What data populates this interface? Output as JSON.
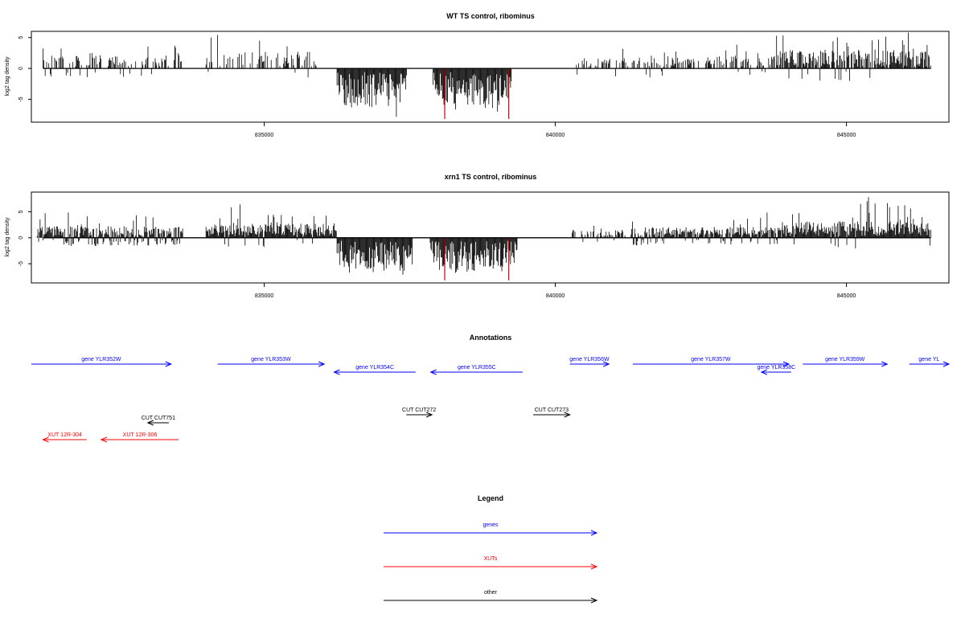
{
  "chart_data": [
    {
      "type": "bar",
      "title": "WT TS control, ribominus",
      "ylabel": "log2 tag density",
      "xlim": [
        831000,
        846760
      ],
      "ylim": [
        -8.7,
        6.0
      ],
      "x_ticks": [
        835000,
        840000,
        845000
      ],
      "y_ticks": [
        5,
        0,
        -5
      ],
      "profile": "wt",
      "marker_positions": [
        838100,
        839200
      ],
      "segments": [
        {
          "from": 831200,
          "to": 833600,
          "mode": "pos",
          "amp": 2.3,
          "density": 0.45,
          "neg_frac": 0.12
        },
        {
          "from": 834000,
          "to": 835900,
          "mode": "pos",
          "amp": 3.0,
          "density": 0.45,
          "neg_frac": 0.08
        },
        {
          "from": 836250,
          "to": 837450,
          "mode": "neg",
          "amp": 5.5,
          "density": 1.0,
          "neg_frac": 1.0
        },
        {
          "from": 837900,
          "to": 839250,
          "mode": "neg",
          "amp": 5.8,
          "density": 1.0,
          "neg_frac": 1.0
        },
        {
          "from": 840350,
          "to": 841500,
          "mode": "pos",
          "amp": 1.8,
          "density": 0.4,
          "neg_frac": 0.1
        },
        {
          "from": 841500,
          "to": 843800,
          "mode": "pos",
          "amp": 2.2,
          "density": 0.45,
          "neg_frac": 0.08
        },
        {
          "from": 843800,
          "to": 846450,
          "mode": "pos",
          "amp": 3.4,
          "density": 0.85,
          "neg_frac": 0.03
        }
      ]
    },
    {
      "type": "bar",
      "title": "xrn1 TS control, ribominus",
      "ylabel": "log2 tag density",
      "xlim": [
        831000,
        846760
      ],
      "ylim": [
        -8.7,
        8.8
      ],
      "x_ticks": [
        835000,
        840000,
        845000
      ],
      "y_ticks": [
        5,
        0,
        -5
      ],
      "profile": "xrn1",
      "marker_positions": [
        838100,
        839200
      ],
      "segments": [
        {
          "from": 831100,
          "to": 833600,
          "mode": "pos",
          "amp": 2.4,
          "density": 1.0,
          "neg_frac": 0.3
        },
        {
          "from": 834000,
          "to": 836250,
          "mode": "pos",
          "amp": 3.0,
          "density": 1.0,
          "neg_frac": 0.05
        },
        {
          "from": 836250,
          "to": 837550,
          "mode": "neg",
          "amp": 5.8,
          "density": 1.0,
          "neg_frac": 1.0
        },
        {
          "from": 837850,
          "to": 839350,
          "mode": "neg",
          "amp": 6.0,
          "density": 1.0,
          "neg_frac": 1.0
        },
        {
          "from": 840250,
          "to": 841200,
          "mode": "pos",
          "amp": 1.6,
          "density": 0.5,
          "neg_frac": 0.1
        },
        {
          "from": 841300,
          "to": 843900,
          "mode": "pos",
          "amp": 2.2,
          "density": 0.9,
          "neg_frac": 0.2
        },
        {
          "from": 843900,
          "to": 846450,
          "mode": "pos",
          "amp": 3.6,
          "density": 1.0,
          "neg_frac": 0.04
        }
      ]
    }
  ],
  "annotations": {
    "title": "Annotations",
    "features": [
      {
        "label": "gene YLR352W",
        "type": "gene",
        "from": 831000,
        "to": 833400,
        "strand": "+",
        "row": 0
      },
      {
        "label": "gene YLR353W",
        "type": "gene",
        "from": 834200,
        "to": 836030,
        "strand": "+",
        "row": 0
      },
      {
        "label": "gene YLR354C",
        "type": "gene",
        "from": 836200,
        "to": 837600,
        "strand": "-",
        "row": 1
      },
      {
        "label": "gene YLR355C",
        "type": "gene",
        "from": 837860,
        "to": 839440,
        "strand": "-",
        "row": 1
      },
      {
        "label": "gene YLR356W",
        "type": "gene",
        "from": 840250,
        "to": 840920,
        "strand": "+",
        "row": 0
      },
      {
        "label": "gene YLR357W",
        "type": "gene",
        "from": 841330,
        "to": 844010,
        "strand": "+",
        "row": 0
      },
      {
        "label": "gene YLR358C",
        "type": "gene",
        "from": 843540,
        "to": 844050,
        "strand": "-",
        "row": 1
      },
      {
        "label": "gene YLR359W",
        "type": "gene",
        "from": 844250,
        "to": 845700,
        "strand": "+",
        "row": 0
      },
      {
        "label": "gene YL",
        "type": "gene",
        "from": 846080,
        "to": 846760,
        "strand": "+",
        "row": 0
      },
      {
        "label": "CUT CUT751",
        "type": "other",
        "from": 833000,
        "to": 833360,
        "strand": "-",
        "row": 3
      },
      {
        "label": "CUT CUT272",
        "type": "other",
        "from": 837440,
        "to": 837880,
        "strand": "+",
        "row": 2
      },
      {
        "label": "CUT CUT273",
        "type": "other",
        "from": 839620,
        "to": 840250,
        "strand": "+",
        "row": 2
      },
      {
        "label": "XUT 12R-304",
        "type": "xut",
        "from": 831200,
        "to": 831950,
        "strand": "-",
        "row": 4
      },
      {
        "label": "XUT 12R-306",
        "type": "xut",
        "from": 832200,
        "to": 833530,
        "strand": "-",
        "row": 4
      }
    ]
  },
  "legend": {
    "title": "Legend",
    "items": [
      {
        "label": "genes",
        "type": "gene"
      },
      {
        "label": "XUTs",
        "type": "xut"
      },
      {
        "label": "other",
        "type": "other"
      }
    ]
  },
  "colors": {
    "gene": "#0000ff",
    "xut": "#ff0000",
    "other": "#000000",
    "bars": "#000000",
    "marker": "#cc0000"
  }
}
